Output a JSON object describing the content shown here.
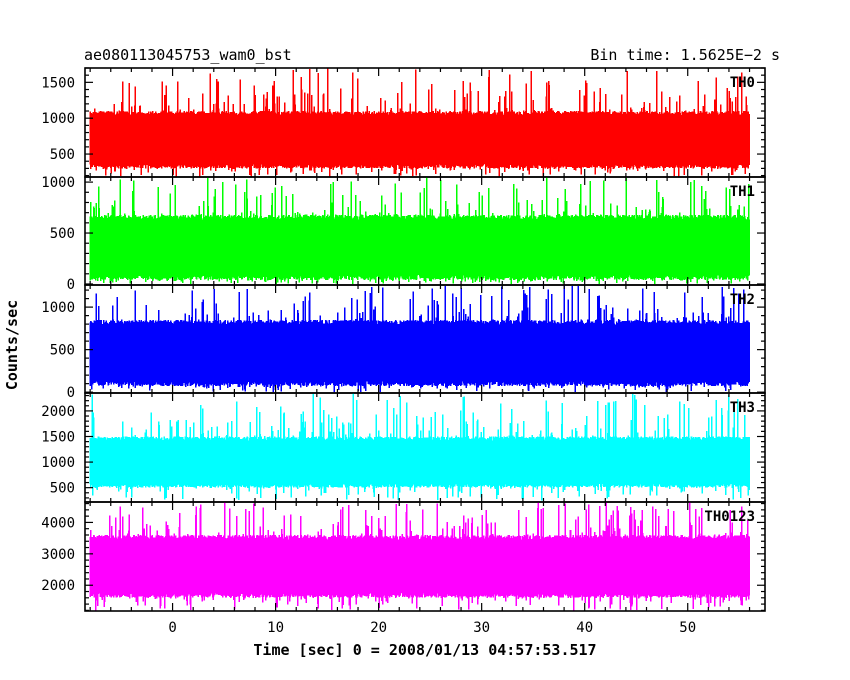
{
  "header": {
    "left": "ae080113045753_wam0_bst",
    "right": "Bin time: 1.5625E−2 s"
  },
  "chart_data": {
    "type": "line",
    "xlabel": "Time [sec] 0 = 2008/01/13 04:57:53.517",
    "ylabel": "Counts/sec",
    "xlim": [
      -8.5,
      57.5
    ],
    "x_range": [
      -8,
      56
    ],
    "bin_time_s": 0.015625,
    "x_ticks": [
      0,
      10,
      20,
      30,
      40,
      50
    ],
    "x_tick_labels": [
      "0",
      "10",
      "20",
      "30",
      "40",
      "50"
    ],
    "panels": [
      {
        "label": "TH0",
        "color": "#ff0000",
        "ylim": [
          180,
          1700
        ],
        "y_ticks": [
          500,
          1000,
          1500
        ],
        "y_tick_labels": [
          "500",
          "1000",
          "1500"
        ],
        "typical_range": [
          300,
          1100
        ],
        "extreme_range": [
          180,
          1700
        ]
      },
      {
        "label": "TH1",
        "color": "#00ff00",
        "ylim": [
          -10,
          1050
        ],
        "y_ticks": [
          0,
          500,
          1000
        ],
        "y_tick_labels": [
          "0",
          "500",
          "1000"
        ],
        "typical_range": [
          40,
          680
        ],
        "extreme_range": [
          0,
          1050
        ]
      },
      {
        "label": "TH2",
        "color": "#0000ff",
        "ylim": [
          -10,
          1260
        ],
        "y_ticks": [
          0,
          500,
          1000
        ],
        "y_tick_labels": [
          "0",
          "500",
          "1000"
        ],
        "typical_range": [
          70,
          850
        ],
        "extreme_range": [
          0,
          1260
        ]
      },
      {
        "label": "TH3",
        "color": "#00ffff",
        "ylim": [
          220,
          2350
        ],
        "y_ticks": [
          500,
          1000,
          1500,
          2000
        ],
        "y_tick_labels": [
          "500",
          "1000",
          "1500",
          "2000"
        ],
        "typical_range": [
          500,
          1500
        ],
        "extreme_range": [
          250,
          2350
        ]
      },
      {
        "label": "TH0123",
        "color": "#ff00ff",
        "ylim": [
          1180,
          4650
        ],
        "y_ticks": [
          2000,
          3000,
          4000
        ],
        "y_tick_labels": [
          "2000",
          "3000",
          "4000"
        ],
        "typical_range": [
          1600,
          3600
        ],
        "extreme_range": [
          1200,
          4650
        ]
      }
    ],
    "grid": false
  }
}
